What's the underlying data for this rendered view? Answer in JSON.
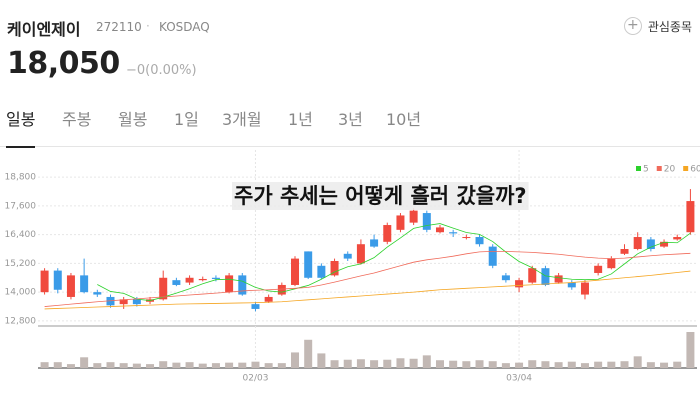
{
  "header": {
    "name": "케이엔제이",
    "code": "272110",
    "market": "KOSDAQ",
    "watch_button": "관심종목",
    "price": "18,050",
    "change": "−0(0.00%)"
  },
  "tabs": [
    "일봉",
    "주봉",
    "월봉",
    "1일",
    "3개월",
    "1년",
    "3년",
    "10년"
  ],
  "chart_data": {
    "type": "candlestick",
    "annotation": "주가 추세는 어떻게 흘러 갔을까?",
    "categories": [
      null,
      null,
      null,
      null,
      null,
      null,
      null,
      null,
      null,
      null,
      null,
      null,
      null,
      null,
      null,
      null,
      "02/03",
      null,
      null,
      null,
      null,
      null,
      null,
      null,
      null,
      null,
      null,
      null,
      null,
      null,
      null,
      null,
      null,
      null,
      null,
      null,
      "03/04",
      null,
      null,
      null,
      null,
      null,
      null,
      null,
      null,
      null,
      null,
      null,
      null,
      null
    ],
    "open": [
      14000,
      14900,
      13800,
      14700,
      14000,
      13800,
      13500,
      13700,
      13600,
      13700,
      14500,
      14400,
      14500,
      14600,
      14000,
      14700,
      13500,
      13600,
      13900,
      14300,
      15700,
      15100,
      14700,
      15600,
      15200,
      16200,
      16100,
      16600,
      16900,
      17300,
      16500,
      16500,
      16300,
      16300,
      15900,
      14700,
      14200,
      14400,
      15000,
      14400,
      14400,
      13900,
      14800,
      15000,
      15600,
      15800,
      16200,
      15900,
      16200,
      16500
    ],
    "high": [
      15000,
      15000,
      14800,
      15400,
      14100,
      13900,
      13800,
      13800,
      13800,
      14900,
      14600,
      14700,
      14650,
      14700,
      14800,
      14800,
      13600,
      13900,
      14400,
      15500,
      15700,
      15200,
      15400,
      15700,
      16200,
      16400,
      16900,
      17300,
      17500,
      17400,
      16800,
      16600,
      16400,
      16400,
      16000,
      14800,
      14600,
      15100,
      15100,
      14800,
      14500,
      14500,
      15200,
      15500,
      16000,
      16500,
      16300,
      16200,
      16400,
      18300
    ],
    "low": [
      13900,
      13950,
      13700,
      13950,
      13800,
      13350,
      13300,
      13400,
      13500,
      13650,
      14250,
      14300,
      14450,
      14450,
      13950,
      13850,
      13200,
      13550,
      13850,
      14250,
      14550,
      14550,
      14650,
      15300,
      15150,
      15850,
      16000,
      16500,
      16800,
      16500,
      16450,
      16300,
      16200,
      15900,
      15000,
      14400,
      14000,
      14350,
      14250,
      14350,
      14100,
      13700,
      14700,
      14950,
      15550,
      15750,
      15700,
      15850,
      16150,
      16400
    ],
    "close": [
      14900,
      14100,
      14700,
      14000,
      13900,
      13450,
      13700,
      13500,
      13700,
      14600,
      14300,
      14600,
      14550,
      14550,
      14700,
      13900,
      13300,
      13800,
      14300,
      15400,
      14600,
      14600,
      15300,
      15400,
      16000,
      15900,
      16800,
      17200,
      17400,
      16600,
      16700,
      16450,
      16300,
      16000,
      15100,
      14500,
      14500,
      15000,
      14300,
      14700,
      14200,
      14400,
      15100,
      15400,
      15800,
      16300,
      15800,
      16100,
      16300,
      17800
    ],
    "up_color": "#f04a3e",
    "down_color": "#3a9be8",
    "ylim": [
      12630,
      19930
    ],
    "yticks": [
      {
        "value": 12800,
        "label": "12,800"
      },
      {
        "value": 14000,
        "label": "14,000"
      },
      {
        "value": 15200,
        "label": "15,200"
      },
      {
        "value": 16400,
        "label": "16,400"
      },
      {
        "value": 17600,
        "label": "17,600"
      },
      {
        "value": 18800,
        "label": "18,800"
      }
    ],
    "grid": true,
    "moving_averages": [
      {
        "name": "5",
        "color": "#2bd12b",
        "values": [
          null,
          null,
          null,
          null,
          14320,
          14030,
          13950,
          13710,
          13650,
          13790,
          13960,
          14140,
          14350,
          14520,
          14540,
          14460,
          14200,
          14050,
          14000,
          14140,
          14280,
          14540,
          14840,
          15060,
          15180,
          15440,
          15880,
          16260,
          16660,
          16780,
          16860,
          16670,
          16490,
          16410,
          16110,
          15670,
          15280,
          15020,
          14680,
          14600,
          14540,
          14520,
          14540,
          14760,
          15180,
          15600,
          15880,
          16080,
          16060,
          16460
        ]
      },
      {
        "name": "20",
        "color": "#f06a5a",
        "values": [
          13400,
          13450,
          13500,
          13550,
          13600,
          13640,
          13680,
          13720,
          13760,
          13800,
          13840,
          13880,
          13920,
          13960,
          14000,
          14050,
          14080,
          14100,
          14130,
          14160,
          14200,
          14300,
          14420,
          14550,
          14680,
          14800,
          14950,
          15100,
          15250,
          15350,
          15420,
          15500,
          15600,
          15680,
          15700,
          15700,
          15680,
          15660,
          15620,
          15580,
          15520,
          15460,
          15420,
          15400,
          15420,
          15470,
          15520,
          15560,
          15590,
          15620
        ]
      },
      {
        "name": "60",
        "color": "#f5a623",
        "values": [
          13300,
          13320,
          13340,
          13360,
          13380,
          13400,
          13420,
          13440,
          13460,
          13480,
          13500,
          13510,
          13520,
          13530,
          13540,
          13550,
          13560,
          13580,
          13600,
          13640,
          13680,
          13720,
          13760,
          13800,
          13840,
          13880,
          13920,
          13960,
          14000,
          14050,
          14100,
          14130,
          14160,
          14190,
          14220,
          14250,
          14280,
          14310,
          14340,
          14370,
          14400,
          14450,
          14500,
          14550,
          14600,
          14650,
          14700,
          14760,
          14820,
          14880
        ]
      }
    ],
    "volume": {
      "color": "#c2b8b4",
      "values": [
        60,
        60,
        40,
        110,
        50,
        60,
        50,
        45,
        40,
        70,
        55,
        60,
        45,
        50,
        55,
        55,
        65,
        50,
        50,
        160,
        290,
        150,
        80,
        85,
        90,
        80,
        85,
        100,
        95,
        130,
        80,
        75,
        70,
        80,
        70,
        50,
        55,
        80,
        70,
        60,
        65,
        50,
        65,
        65,
        70,
        120,
        60,
        55,
        65,
        370
      ]
    }
  }
}
